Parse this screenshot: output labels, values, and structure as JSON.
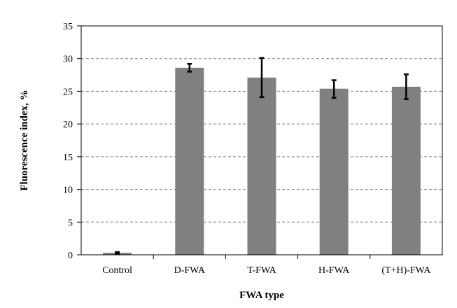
{
  "chart_data": {
    "type": "bar",
    "categories": [
      "Control",
      "D-FWA",
      "T-FWA",
      "H-FWA",
      "(T+H)-FWA"
    ],
    "values": [
      0.3,
      28.6,
      27.1,
      25.4,
      25.7
    ],
    "error_low": [
      0.2,
      28.0,
      24.1,
      24.0,
      23.8
    ],
    "error_high": [
      0.4,
      29.2,
      30.1,
      26.7,
      27.6
    ],
    "xlabel": "FWA type",
    "ylabel": "Fluorescence index, %",
    "ylim": [
      0,
      35
    ],
    "yticks": [
      "0",
      "5",
      "10",
      "15",
      "20",
      "25",
      "30",
      "35"
    ],
    "grid": "horizontal dashed",
    "bar_color": "#808080",
    "error_bar_color": "#000000"
  }
}
